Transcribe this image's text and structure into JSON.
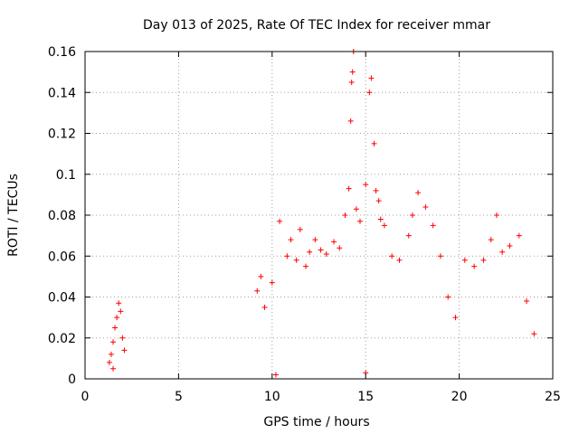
{
  "chart_data": {
    "type": "scatter",
    "title": "Day 013 of 2025, Rate Of TEC Index for receiver mmar",
    "xlabel": "GPS time / hours",
    "ylabel": "ROTI / TECUs",
    "xlim": [
      0,
      25
    ],
    "ylim": [
      0,
      0.16
    ],
    "x_ticks": [
      "0",
      "5",
      "10",
      "15",
      "20",
      "25"
    ],
    "y_ticks": [
      "0",
      "0.02",
      "0.04",
      "0.06",
      "0.08",
      "0.1",
      "0.12",
      "0.14",
      "0.16"
    ],
    "grid": true,
    "marker": "+",
    "color": "#ff0000",
    "series": [
      {
        "points": [
          [
            1.3,
            0.008
          ],
          [
            1.4,
            0.012
          ],
          [
            1.5,
            0.018
          ],
          [
            1.6,
            0.025
          ],
          [
            1.7,
            0.03
          ],
          [
            1.8,
            0.037
          ],
          [
            1.9,
            0.033
          ],
          [
            2.0,
            0.02
          ],
          [
            2.1,
            0.014
          ],
          [
            1.5,
            0.005
          ],
          [
            9.2,
            0.043
          ],
          [
            9.4,
            0.05
          ],
          [
            9.6,
            0.035
          ],
          [
            10.0,
            0.047
          ],
          [
            10.4,
            0.077
          ],
          [
            10.8,
            0.06
          ],
          [
            11.0,
            0.068
          ],
          [
            11.3,
            0.058
          ],
          [
            11.5,
            0.073
          ],
          [
            11.8,
            0.055
          ],
          [
            12.0,
            0.062
          ],
          [
            12.3,
            0.068
          ],
          [
            12.6,
            0.063
          ],
          [
            12.9,
            0.061
          ],
          [
            13.3,
            0.067
          ],
          [
            13.6,
            0.064
          ],
          [
            13.9,
            0.08
          ],
          [
            14.1,
            0.093
          ],
          [
            14.2,
            0.126
          ],
          [
            14.25,
            0.145
          ],
          [
            14.3,
            0.15
          ],
          [
            14.35,
            0.16
          ],
          [
            14.5,
            0.083
          ],
          [
            14.7,
            0.077
          ],
          [
            15.0,
            0.095
          ],
          [
            15.2,
            0.14
          ],
          [
            15.3,
            0.147
          ],
          [
            15.45,
            0.115
          ],
          [
            15.55,
            0.092
          ],
          [
            15.7,
            0.087
          ],
          [
            15.8,
            0.078
          ],
          [
            16.0,
            0.075
          ],
          [
            16.4,
            0.06
          ],
          [
            16.8,
            0.058
          ],
          [
            17.3,
            0.07
          ],
          [
            17.5,
            0.08
          ],
          [
            17.8,
            0.091
          ],
          [
            18.2,
            0.084
          ],
          [
            18.6,
            0.075
          ],
          [
            19.0,
            0.06
          ],
          [
            19.4,
            0.04
          ],
          [
            19.8,
            0.03
          ],
          [
            20.3,
            0.058
          ],
          [
            20.8,
            0.055
          ],
          [
            21.3,
            0.058
          ],
          [
            21.7,
            0.068
          ],
          [
            22.0,
            0.08
          ],
          [
            22.3,
            0.062
          ],
          [
            22.7,
            0.065
          ],
          [
            23.2,
            0.07
          ],
          [
            23.6,
            0.038
          ],
          [
            24.0,
            0.022
          ],
          [
            10.2,
            0.002
          ],
          [
            15.0,
            0.003
          ]
        ]
      }
    ]
  }
}
